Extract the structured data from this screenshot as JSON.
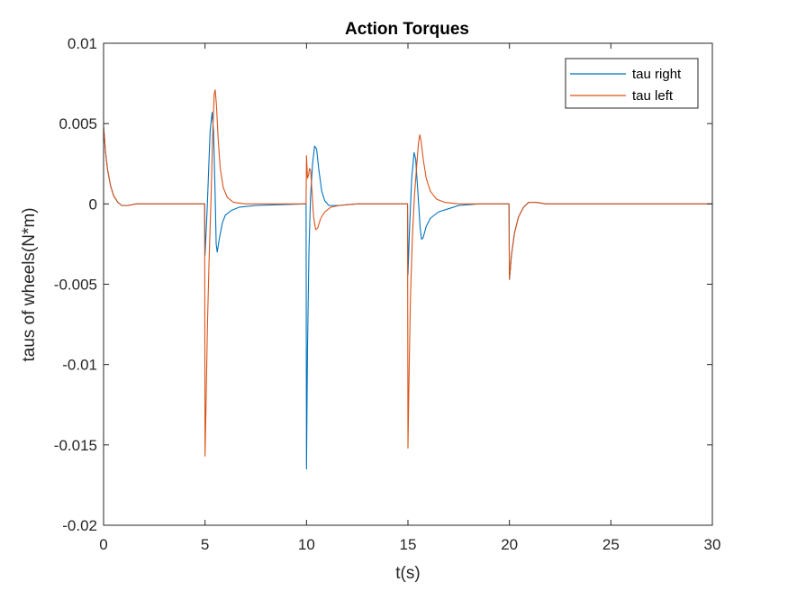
{
  "chart_data": {
    "type": "line",
    "title": "Action Torques",
    "xlabel": "t(s)",
    "ylabel": "taus of wheels(N*m)",
    "xlim": [
      0,
      30
    ],
    "ylim": [
      -0.02,
      0.01
    ],
    "xticks": [
      0,
      5,
      10,
      15,
      20,
      25,
      30
    ],
    "xtick_labels": [
      "0",
      "5",
      "10",
      "15",
      "20",
      "25",
      "30"
    ],
    "yticks": [
      0.01,
      0.005,
      0,
      -0.005,
      -0.01,
      -0.015,
      -0.02
    ],
    "ytick_labels": [
      "0.01",
      "0.005",
      "0",
      "-0.005",
      "-0.01",
      "-0.015",
      "-0.02"
    ],
    "grid": false,
    "legend_location": "top-right",
    "series": [
      {
        "name": "tau right",
        "color": "#0072BD",
        "points": [
          [
            0,
            0.0048
          ],
          [
            0.1,
            0.0032
          ],
          [
            0.2,
            0.0021
          ],
          [
            0.35,
            0.0011
          ],
          [
            0.5,
            0.0005
          ],
          [
            0.7,
            0.0001
          ],
          [
            0.9,
            -0.0001
          ],
          [
            1.2,
            -0.0001
          ],
          [
            1.6,
            0.0
          ],
          [
            4.98,
            0.0
          ],
          [
            5.0,
            -0.0032
          ],
          [
            5.1,
            -0.0005
          ],
          [
            5.25,
            0.0045
          ],
          [
            5.35,
            0.0057
          ],
          [
            5.42,
            0.0045
          ],
          [
            5.5,
            0.0005
          ],
          [
            5.55,
            -0.0025
          ],
          [
            5.6,
            -0.003
          ],
          [
            5.7,
            -0.0022
          ],
          [
            5.85,
            -0.0012
          ],
          [
            6.0,
            -0.0007
          ],
          [
            6.3,
            -0.0004
          ],
          [
            6.7,
            -0.0002
          ],
          [
            7.5,
            -0.0001
          ],
          [
            9.98,
            0.0
          ],
          [
            10.0,
            -0.0165
          ],
          [
            10.05,
            -0.009
          ],
          [
            10.12,
            -0.003
          ],
          [
            10.2,
            0.0005
          ],
          [
            10.3,
            0.0025
          ],
          [
            10.4,
            0.0036
          ],
          [
            10.5,
            0.0034
          ],
          [
            10.6,
            0.0022
          ],
          [
            10.75,
            0.0008
          ],
          [
            10.9,
            0.0002
          ],
          [
            11.1,
            -0.0001
          ],
          [
            11.5,
            -0.0001
          ],
          [
            12.5,
            0.0
          ],
          [
            14.98,
            0.0
          ],
          [
            15.0,
            -0.0044
          ],
          [
            15.08,
            -0.0015
          ],
          [
            15.18,
            0.0015
          ],
          [
            15.3,
            0.0032
          ],
          [
            15.38,
            0.0028
          ],
          [
            15.5,
            0.0005
          ],
          [
            15.6,
            -0.0015
          ],
          [
            15.67,
            -0.0022
          ],
          [
            15.75,
            -0.0021
          ],
          [
            15.9,
            -0.0014
          ],
          [
            16.1,
            -0.0009
          ],
          [
            16.5,
            -0.0005
          ],
          [
            17.0,
            -0.0003
          ],
          [
            17.5,
            -0.0001
          ],
          [
            18.5,
            0.0
          ],
          [
            19.98,
            0.0
          ],
          [
            20.0,
            -0.0047
          ],
          [
            20.1,
            -0.0032
          ],
          [
            20.25,
            -0.0018
          ],
          [
            20.45,
            -0.0008
          ],
          [
            20.7,
            -0.0002
          ],
          [
            20.95,
            0.0001
          ],
          [
            21.3,
            0.0001
          ],
          [
            21.8,
            0.0
          ],
          [
            30,
            0.0
          ]
        ]
      },
      {
        "name": "tau left",
        "color": "#D95319",
        "points": [
          [
            0,
            0.0048
          ],
          [
            0.1,
            0.0032
          ],
          [
            0.2,
            0.0021
          ],
          [
            0.35,
            0.0011
          ],
          [
            0.5,
            0.0005
          ],
          [
            0.7,
            0.0001
          ],
          [
            0.9,
            -0.0001
          ],
          [
            1.2,
            -0.0001
          ],
          [
            1.6,
            0.0
          ],
          [
            4.98,
            0.0
          ],
          [
            5.0,
            -0.0157
          ],
          [
            5.05,
            -0.0125
          ],
          [
            5.12,
            -0.0075
          ],
          [
            5.2,
            -0.0035
          ],
          [
            5.3,
            0.0005
          ],
          [
            5.38,
            0.0045
          ],
          [
            5.45,
            0.0068
          ],
          [
            5.5,
            0.0071
          ],
          [
            5.56,
            0.0062
          ],
          [
            5.65,
            0.004
          ],
          [
            5.75,
            0.0022
          ],
          [
            5.9,
            0.001
          ],
          [
            6.1,
            0.0004
          ],
          [
            6.4,
            0.0001
          ],
          [
            7.0,
            0.0
          ],
          [
            9.98,
            0.0
          ],
          [
            10.0,
            0.003
          ],
          [
            10.05,
            0.0016
          ],
          [
            10.1,
            0.0018
          ],
          [
            10.15,
            0.0022
          ],
          [
            10.2,
            0.0021
          ],
          [
            10.27,
            0.0008
          ],
          [
            10.35,
            -0.0008
          ],
          [
            10.45,
            -0.0016
          ],
          [
            10.55,
            -0.0015
          ],
          [
            10.7,
            -0.0009
          ],
          [
            10.9,
            -0.0005
          ],
          [
            11.2,
            -0.0002
          ],
          [
            11.6,
            -0.0001
          ],
          [
            12.5,
            0.0
          ],
          [
            14.98,
            0.0
          ],
          [
            15.0,
            -0.0152
          ],
          [
            15.05,
            -0.011
          ],
          [
            15.12,
            -0.006
          ],
          [
            15.22,
            -0.002
          ],
          [
            15.32,
            0.0005
          ],
          [
            15.42,
            0.0022
          ],
          [
            15.52,
            0.0038
          ],
          [
            15.58,
            0.0043
          ],
          [
            15.65,
            0.0039
          ],
          [
            15.75,
            0.0028
          ],
          [
            15.9,
            0.0016
          ],
          [
            16.1,
            0.0008
          ],
          [
            16.4,
            0.0003
          ],
          [
            16.8,
            0.0001
          ],
          [
            17.5,
            0.0
          ],
          [
            19.98,
            0.0
          ],
          [
            20.0,
            -0.0047
          ],
          [
            20.1,
            -0.0032
          ],
          [
            20.25,
            -0.0018
          ],
          [
            20.45,
            -0.0008
          ],
          [
            20.7,
            -0.0002
          ],
          [
            20.95,
            0.0001
          ],
          [
            21.3,
            0.0001
          ],
          [
            21.8,
            0.0
          ],
          [
            30,
            0.0
          ]
        ]
      }
    ]
  }
}
